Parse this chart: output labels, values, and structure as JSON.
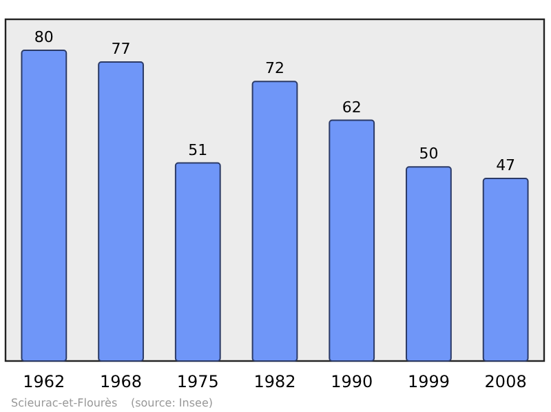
{
  "chart_data": {
    "type": "bar",
    "categories": [
      "1962",
      "1968",
      "1975",
      "1982",
      "1990",
      "1999",
      "2008"
    ],
    "values": [
      80,
      77,
      51,
      72,
      62,
      50,
      47
    ],
    "color": "#6f96f8",
    "ylim": [
      0,
      88
    ],
    "tick_labels": "x",
    "data_labels": true,
    "annotations": [
      "Scieurac-et-Flourès",
      "(source: Insee)"
    ]
  }
}
